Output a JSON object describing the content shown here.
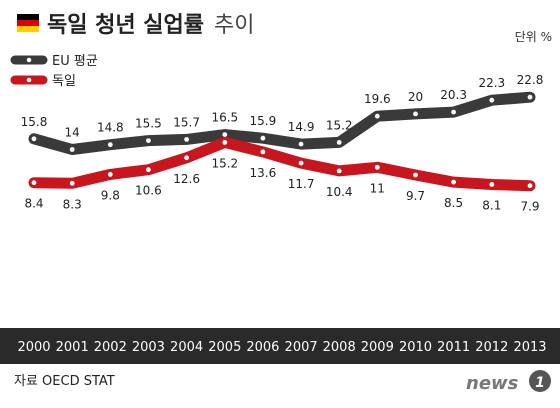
{
  "chart_data": {
    "type": "line",
    "title_bold": "독일 청년 실업률",
    "title_light": "추이",
    "unit": "단위 %",
    "source": "자료 OECD STAT",
    "logo_text": "news1",
    "flag_colors": [
      "#000000",
      "#DD0000",
      "#FFCE00"
    ],
    "categories": [
      "2000",
      "2001",
      "2002",
      "2003",
      "2004",
      "2005",
      "2006",
      "2007",
      "2008",
      "2009",
      "2010",
      "2011",
      "2012",
      "2013"
    ],
    "series": [
      {
        "name": "EU 평균",
        "color": "#3a3a3a",
        "values": [
          15.8,
          14,
          14.8,
          15.5,
          15.7,
          16.5,
          15.9,
          14.9,
          15.2,
          19.6,
          20,
          20.3,
          22.3,
          22.8
        ],
        "labels": [
          "15.8",
          "14",
          "14.8",
          "15.5",
          "15.7",
          "16.5",
          "15.9",
          "14.9",
          "15.2",
          "19.6",
          "20",
          "20.3",
          "22.3",
          "22.8"
        ]
      },
      {
        "name": "독일",
        "color": "#c8161e",
        "values": [
          8.4,
          8.3,
          9.8,
          10.6,
          12.6,
          15.2,
          13.6,
          11.7,
          10.4,
          11,
          9.7,
          8.5,
          8.1,
          7.9
        ],
        "labels": [
          "8.4",
          "8.3",
          "9.8",
          "10.6",
          "12.6",
          "15.2",
          "13.6",
          "11.7",
          "10.4",
          "11",
          "9.7",
          "8.5",
          "8.1",
          "7.9"
        ]
      }
    ],
    "axis_bar_color": "#2a2a2a",
    "grid": false,
    "legend_position": "top-left"
  }
}
